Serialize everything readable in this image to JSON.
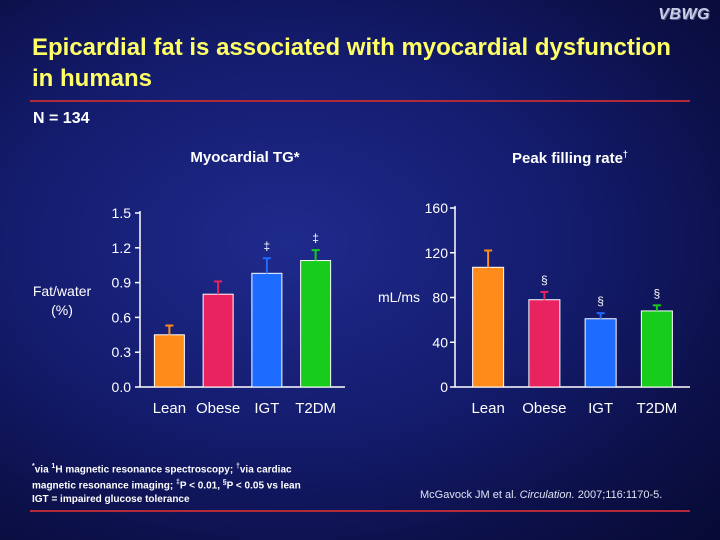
{
  "logo": "VBWG",
  "title": "Epicardial fat is associated with myocardial dysfunction in humans",
  "n_label": "N = 134",
  "colors": {
    "title": "#ffff66",
    "rule": "#b22a3a",
    "bars": [
      "#ff8c1a",
      "#e8235f",
      "#1e6bff",
      "#17cc1a"
    ],
    "error_bars": [
      "#ff8c1a",
      "#e8235f",
      "#1e6bff",
      "#17cc1a"
    ]
  },
  "footnote": {
    "line1_a": "via ",
    "line1_b": "H magnetic resonance spectroscopy; ",
    "line1_c": "via cardiac",
    "line2_a": "magnetic resonance imaging; ",
    "line2_b": "P < 0.01, ",
    "line2_c": "P < 0.05 vs lean",
    "line3": "IGT = impaired glucose tolerance",
    "sup_star": "*",
    "sup_one": "1",
    "sup_dagger": "†",
    "sup_ddagger": "‡",
    "sup_section": "§"
  },
  "citation": {
    "authors": "McGavock JM et al.",
    "journal": "Circulation.",
    "details": "2007;116:1170-5."
  },
  "chart_data": [
    {
      "type": "bar",
      "title": "Myocardial TG*",
      "ylabel_line1": "Fat/water",
      "ylabel_line2": "(%)",
      "categories": [
        "Lean",
        "Obese",
        "IGT",
        "T2DM"
      ],
      "values": [
        0.45,
        0.8,
        0.98,
        1.09
      ],
      "errors": [
        0.08,
        0.11,
        0.13,
        0.09
      ],
      "annotations": [
        "",
        "",
        "‡",
        "‡"
      ],
      "ylim": [
        0,
        1.5
      ],
      "yticks": [
        "0.0",
        "0.3",
        "0.6",
        "0.9",
        "1.2",
        "1.5"
      ]
    },
    {
      "type": "bar",
      "title": "Peak filling rate",
      "title_sup": "†",
      "ylabel": "mL/ms",
      "categories": [
        "Lean",
        "Obese",
        "IGT",
        "T2DM"
      ],
      "values": [
        107,
        78,
        61,
        68
      ],
      "errors": [
        15,
        7,
        5,
        5
      ],
      "annotations": [
        "",
        "§",
        "§",
        "§"
      ],
      "ylim": [
        0,
        160
      ],
      "yticks": [
        "0",
        "40",
        "80",
        "120",
        "160"
      ]
    }
  ]
}
